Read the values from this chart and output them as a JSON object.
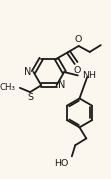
{
  "bg_color": "#fbf7ee",
  "line_color": "#1a1a1a",
  "lw": 1.3,
  "figsize": [
    1.11,
    1.79
  ],
  "dpi": 100,
  "xlim": [
    0,
    111
  ],
  "ylim": [
    179,
    0
  ]
}
